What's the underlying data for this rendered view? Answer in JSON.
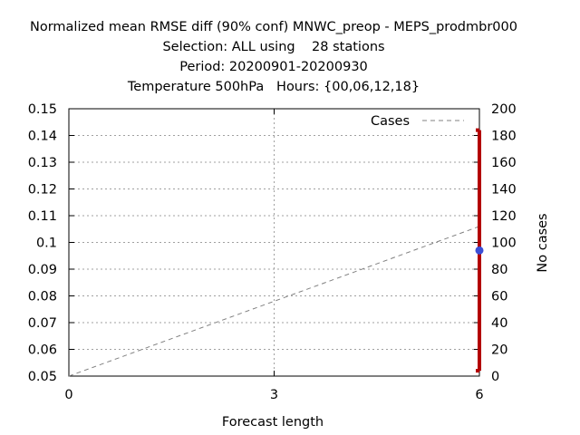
{
  "title_lines": [
    "Normalized mean RMSE diff (90% conf) MNWC_preop - MEPS_prodmbr000",
    "Selection: ALL using    28 stations",
    "Period: 20200901-20200930",
    "Temperature 500hPa   Hours: {00,06,12,18}"
  ],
  "chart_data": {
    "type": "line",
    "xlabel": "Forecast length",
    "ylabel": "",
    "y2label": "No cases",
    "xlim": [
      0,
      6
    ],
    "ylim": [
      0.05,
      0.15
    ],
    "y2lim": [
      0,
      200
    ],
    "x_ticks": [
      0,
      3,
      6
    ],
    "y_ticks": [
      "0.05",
      "0.06",
      "0.07",
      "0.08",
      "0.09",
      "0.1",
      "0.11",
      "0.12",
      "0.13",
      "0.14",
      "0.15"
    ],
    "y2_ticks": [
      "0",
      "20",
      "40",
      "60",
      "80",
      "100",
      "120",
      "140",
      "160",
      "180",
      "200"
    ],
    "grid": true,
    "legend": {
      "position": "top-right",
      "entries": [
        "Cases"
      ]
    },
    "series": [
      {
        "name": "Cases",
        "axis": "right",
        "style": "dashed",
        "color": "#808080",
        "x": [
          0,
          6
        ],
        "y": [
          0,
          112
        ]
      },
      {
        "axis": "left",
        "style": "point-errorbar",
        "color": "#3b4fd6",
        "errorbar_color": "#b30000",
        "x": [
          6
        ],
        "y": [
          0.097
        ],
        "y_low": [
          0.052
        ],
        "y_high": [
          0.142
        ]
      }
    ],
    "colors": {
      "grid": "#a0a0a0",
      "axis": "#000000"
    }
  }
}
